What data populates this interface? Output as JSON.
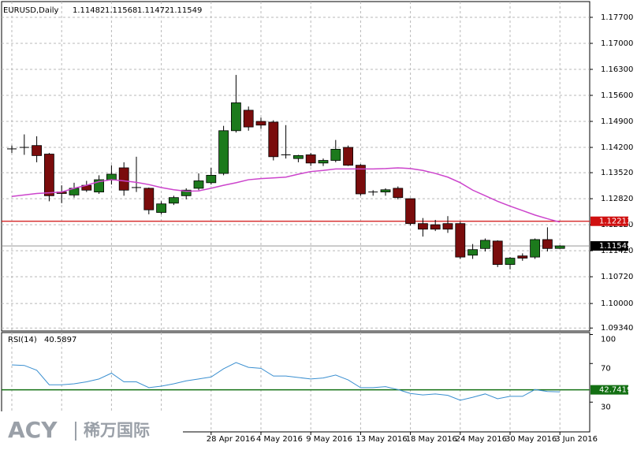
{
  "chart_data": {
    "type": "candlestick",
    "symbol": "EURUSD,Daily",
    "categories": [
      null,
      null,
      null,
      null,
      null,
      null,
      null,
      null,
      null,
      null,
      null,
      null,
      null,
      null,
      null,
      null,
      "28 Apr 2016",
      null,
      null,
      null,
      "4 May 2016",
      null,
      null,
      null,
      "9 May 2016",
      null,
      null,
      null,
      "13 May 2016",
      null,
      null,
      null,
      "18 May 2016",
      null,
      null,
      null,
      "24 May 2016",
      null,
      null,
      null,
      "30 May 2016",
      null,
      null,
      null,
      "3 Jun 2016"
    ],
    "open": [
      1.1416,
      1.142,
      1.1425,
      1.1402,
      1.13,
      1.1292,
      1.1318,
      1.13,
      1.1332,
      1.1365,
      1.1312,
      1.131,
      1.1245,
      1.127,
      1.129,
      1.131,
      1.1325,
      1.135,
      1.1465,
      1.152,
      1.149,
      1.1488,
      1.14,
      1.139,
      1.14,
      1.1378,
      1.1385,
      1.142,
      1.1372,
      1.13,
      1.13,
      1.131,
      1.1282,
      1.1215,
      1.1212,
      1.1215,
      1.1215,
      1.113,
      1.1148,
      1.1168,
      1.1105,
      1.1128,
      1.1125,
      1.1172,
      1.11482
    ],
    "high": [
      1.1425,
      1.1455,
      1.145,
      1.1405,
      1.1318,
      1.1325,
      1.133,
      1.1345,
      1.1372,
      1.138,
      1.1395,
      1.1312,
      1.1275,
      1.129,
      1.131,
      1.135,
      1.1365,
      1.1478,
      1.1615,
      1.153,
      1.15,
      1.1493,
      1.148,
      1.14,
      1.1405,
      1.139,
      1.144,
      1.1425,
      1.1375,
      1.1305,
      1.131,
      1.1315,
      1.1283,
      1.123,
      1.1225,
      1.1235,
      1.122,
      1.116,
      1.1175,
      1.117,
      1.1125,
      1.1135,
      1.1175,
      1.1205,
      1.11568
    ],
    "low": [
      1.1405,
      1.14,
      1.138,
      1.1275,
      1.127,
      1.1285,
      1.13,
      1.1295,
      1.132,
      1.129,
      1.13,
      1.124,
      1.124,
      1.1265,
      1.128,
      1.1305,
      1.132,
      1.1345,
      1.146,
      1.1465,
      1.147,
      1.1385,
      1.139,
      1.138,
      1.137,
      1.137,
      1.138,
      1.137,
      1.129,
      1.129,
      1.129,
      1.128,
      1.121,
      1.118,
      1.1195,
      1.119,
      1.112,
      1.112,
      1.114,
      1.1098,
      1.1092,
      1.1115,
      1.112,
      1.114,
      1.11472
    ],
    "close": [
      1.1414,
      1.1418,
      1.1398,
      1.129,
      1.1296,
      1.131,
      1.1305,
      1.1333,
      1.1348,
      1.1305,
      1.131,
      1.1252,
      1.1268,
      1.1285,
      1.1305,
      1.133,
      1.1345,
      1.1465,
      1.154,
      1.1475,
      1.148,
      1.1395,
      1.1398,
      1.1398,
      1.1378,
      1.1385,
      1.1415,
      1.1372,
      1.1295,
      1.13,
      1.1306,
      1.1285,
      1.1215,
      1.12,
      1.12,
      1.12,
      1.1125,
      1.1145,
      1.117,
      1.1105,
      1.1122,
      1.1122,
      1.1172,
      1.1148,
      1.11549
    ],
    "up_color": "#1c7a1c",
    "down_color": "#7a0c0c",
    "ma": {
      "color": "#cc44cc",
      "values": [
        1.1288,
        1.1292,
        1.1296,
        1.1298,
        1.13,
        1.131,
        1.1318,
        1.1328,
        1.1333,
        1.133,
        1.1326,
        1.132,
        1.1312,
        1.1306,
        1.1302,
        1.1303,
        1.131,
        1.1318,
        1.1325,
        1.1333,
        1.1336,
        1.1338,
        1.134,
        1.1348,
        1.1355,
        1.1358,
        1.1362,
        1.1362,
        1.1362,
        1.1362,
        1.1363,
        1.1365,
        1.1363,
        1.1358,
        1.135,
        1.134,
        1.1325,
        1.1305,
        1.129,
        1.1275,
        1.1262,
        1.125,
        1.1238,
        1.1228,
        1.1219
      ]
    },
    "hline": {
      "value": 1.12213,
      "label": "1.12213",
      "color": "#d01010"
    },
    "ylim": [
      1.0926,
      1.1806
    ],
    "yticks": [
      {
        "value": 1.177,
        "label": "1.17700"
      },
      {
        "value": 1.17,
        "label": "1.17000"
      },
      {
        "value": 1.163,
        "label": "1.16300"
      },
      {
        "value": 1.156,
        "label": "1.15600"
      },
      {
        "value": 1.149,
        "label": "1.14900"
      },
      {
        "value": 1.142,
        "label": "1.14200"
      },
      {
        "value": 1.1352,
        "label": "1.13520"
      },
      {
        "value": 1.1282,
        "label": "1.12820"
      },
      {
        "value": 1.1212,
        "label": "1.12120"
      },
      {
        "value": 1.1142,
        "label": "1.11420"
      },
      {
        "value": 1.1072,
        "label": "1.10720"
      },
      {
        "value": 1.1,
        "label": "1.10000"
      },
      {
        "value": 1.0934,
        "label": "1.09340"
      }
    ],
    "grid": true,
    "rsi": {
      "label": "RSI(14)",
      "color": "#3a8fd0",
      "values": [
        68.6,
        68,
        63,
        48,
        48,
        49,
        51,
        54,
        60,
        51,
        51,
        45,
        46.5,
        49,
        52,
        54,
        56,
        64.5,
        71,
        66,
        65,
        57,
        57,
        55.5,
        54,
        55,
        58,
        53,
        45,
        45,
        46,
        43,
        39,
        37.5,
        38.5,
        37,
        32,
        35,
        38.5,
        33.5,
        36,
        36,
        43,
        41,
        40.5897
      ],
      "level": 42.7419,
      "level_color": "#137013",
      "ylim": [
        0,
        100
      ],
      "yticks": [
        30,
        70,
        100
      ]
    },
    "watermark": {
      "brand": "ACY",
      "name": "稀万国际"
    }
  }
}
